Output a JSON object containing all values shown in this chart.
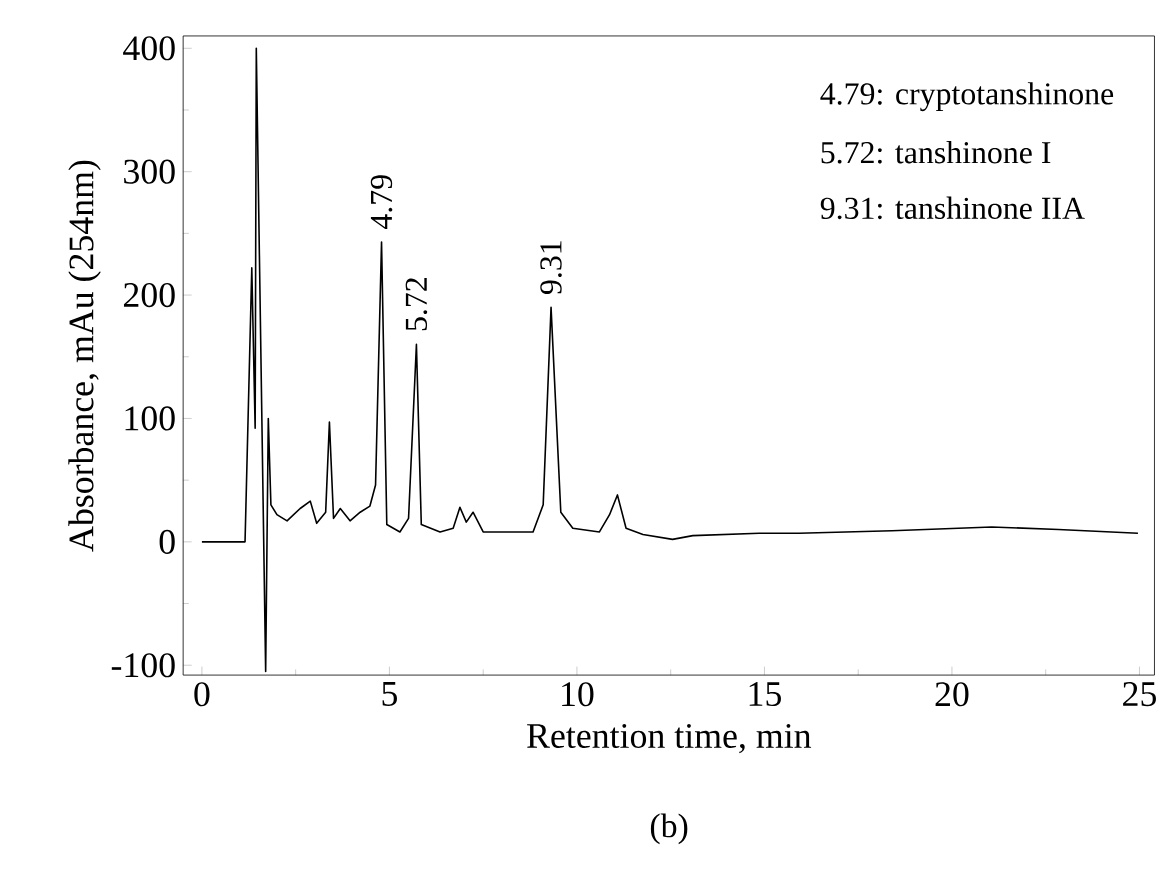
{
  "chart_data": {
    "type": "line",
    "xlabel": "Retention time, min",
    "ylabel": "Absorbance, mAu (254nm)",
    "x": [
      0,
      1.15,
      1.33,
      1.42,
      1.45,
      1.7,
      1.77,
      1.84,
      2.0,
      2.27,
      2.62,
      2.89,
      3.06,
      3.3,
      3.4,
      3.51,
      3.69,
      3.95,
      4.22,
      4.48,
      4.63,
      4.79,
      4.93,
      5.28,
      5.51,
      5.72,
      5.85,
      6.35,
      6.7,
      6.88,
      7.05,
      7.23,
      7.5,
      7.94,
      8.83,
      9.1,
      9.31,
      9.57,
      9.89,
      10.6,
      10.87,
      11.08,
      11.31,
      11.76,
      12.55,
      13.09,
      14.86,
      15.92,
      18.4,
      21.06,
      22.84,
      24.96
    ],
    "series": [
      {
        "color": "#000000",
        "values": [
          0,
          0,
          222,
          92,
          400,
          -105,
          100,
          30,
          22,
          17,
          27,
          33,
          15,
          24,
          97,
          19,
          27,
          17,
          24,
          29,
          46,
          243,
          14,
          8,
          19,
          160,
          14,
          8,
          11,
          28,
          16,
          24,
          8,
          8,
          8,
          30,
          190,
          24,
          11,
          8,
          22,
          38,
          11,
          6,
          2,
          5,
          7,
          7,
          9,
          12,
          10,
          7
        ]
      }
    ],
    "xlim": [
      -0.5,
      25.4
    ],
    "ylim": [
      -108,
      410
    ],
    "xticks": [
      0,
      5,
      10,
      15,
      20,
      25
    ],
    "yticks": [
      -100,
      0,
      100,
      200,
      300,
      400
    ],
    "grid": false,
    "marker": "none",
    "line_style": "solid",
    "annotations": [
      {
        "text": "4.79",
        "x": 4.79,
        "y": 243
      },
      {
        "text": "5.72",
        "x": 5.72,
        "y": 160
      },
      {
        "text": "9.31",
        "x": 9.31,
        "y": 190
      },
      "4.79: cryptotanshinone",
      "5.72: tanshinone I",
      "9.31: tanshinone IIA",
      "(b)"
    ]
  }
}
